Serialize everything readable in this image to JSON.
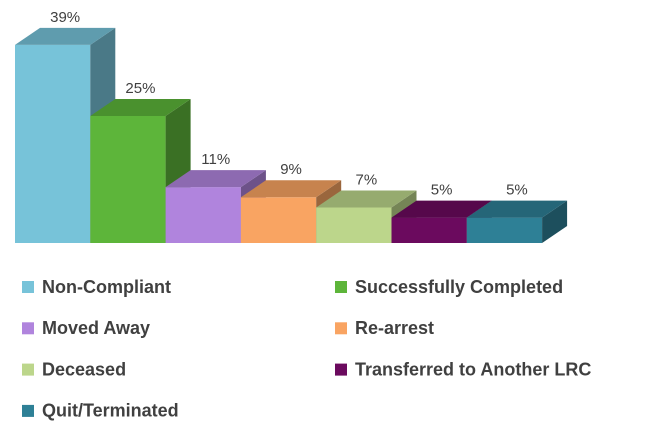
{
  "chart_data": {
    "type": "bar3d",
    "categories": [
      "Non-Compliant",
      "Successfully Completed",
      "Moved Away",
      "Re-arrest",
      "Deceased",
      "Transferred to Another LRC",
      "Quit/Terminated"
    ],
    "values": [
      39,
      25,
      11,
      9,
      7,
      5,
      5
    ],
    "value_labels": [
      "39%",
      "25%",
      "11%",
      "9%",
      "7%",
      "5%",
      "5%"
    ],
    "colors": [
      "#77c3d9",
      "#5db53a",
      "#b084dd",
      "#f9a462",
      "#bcd68b",
      "#6b0a5e",
      "#2e8096"
    ],
    "legend": "bottom"
  }
}
